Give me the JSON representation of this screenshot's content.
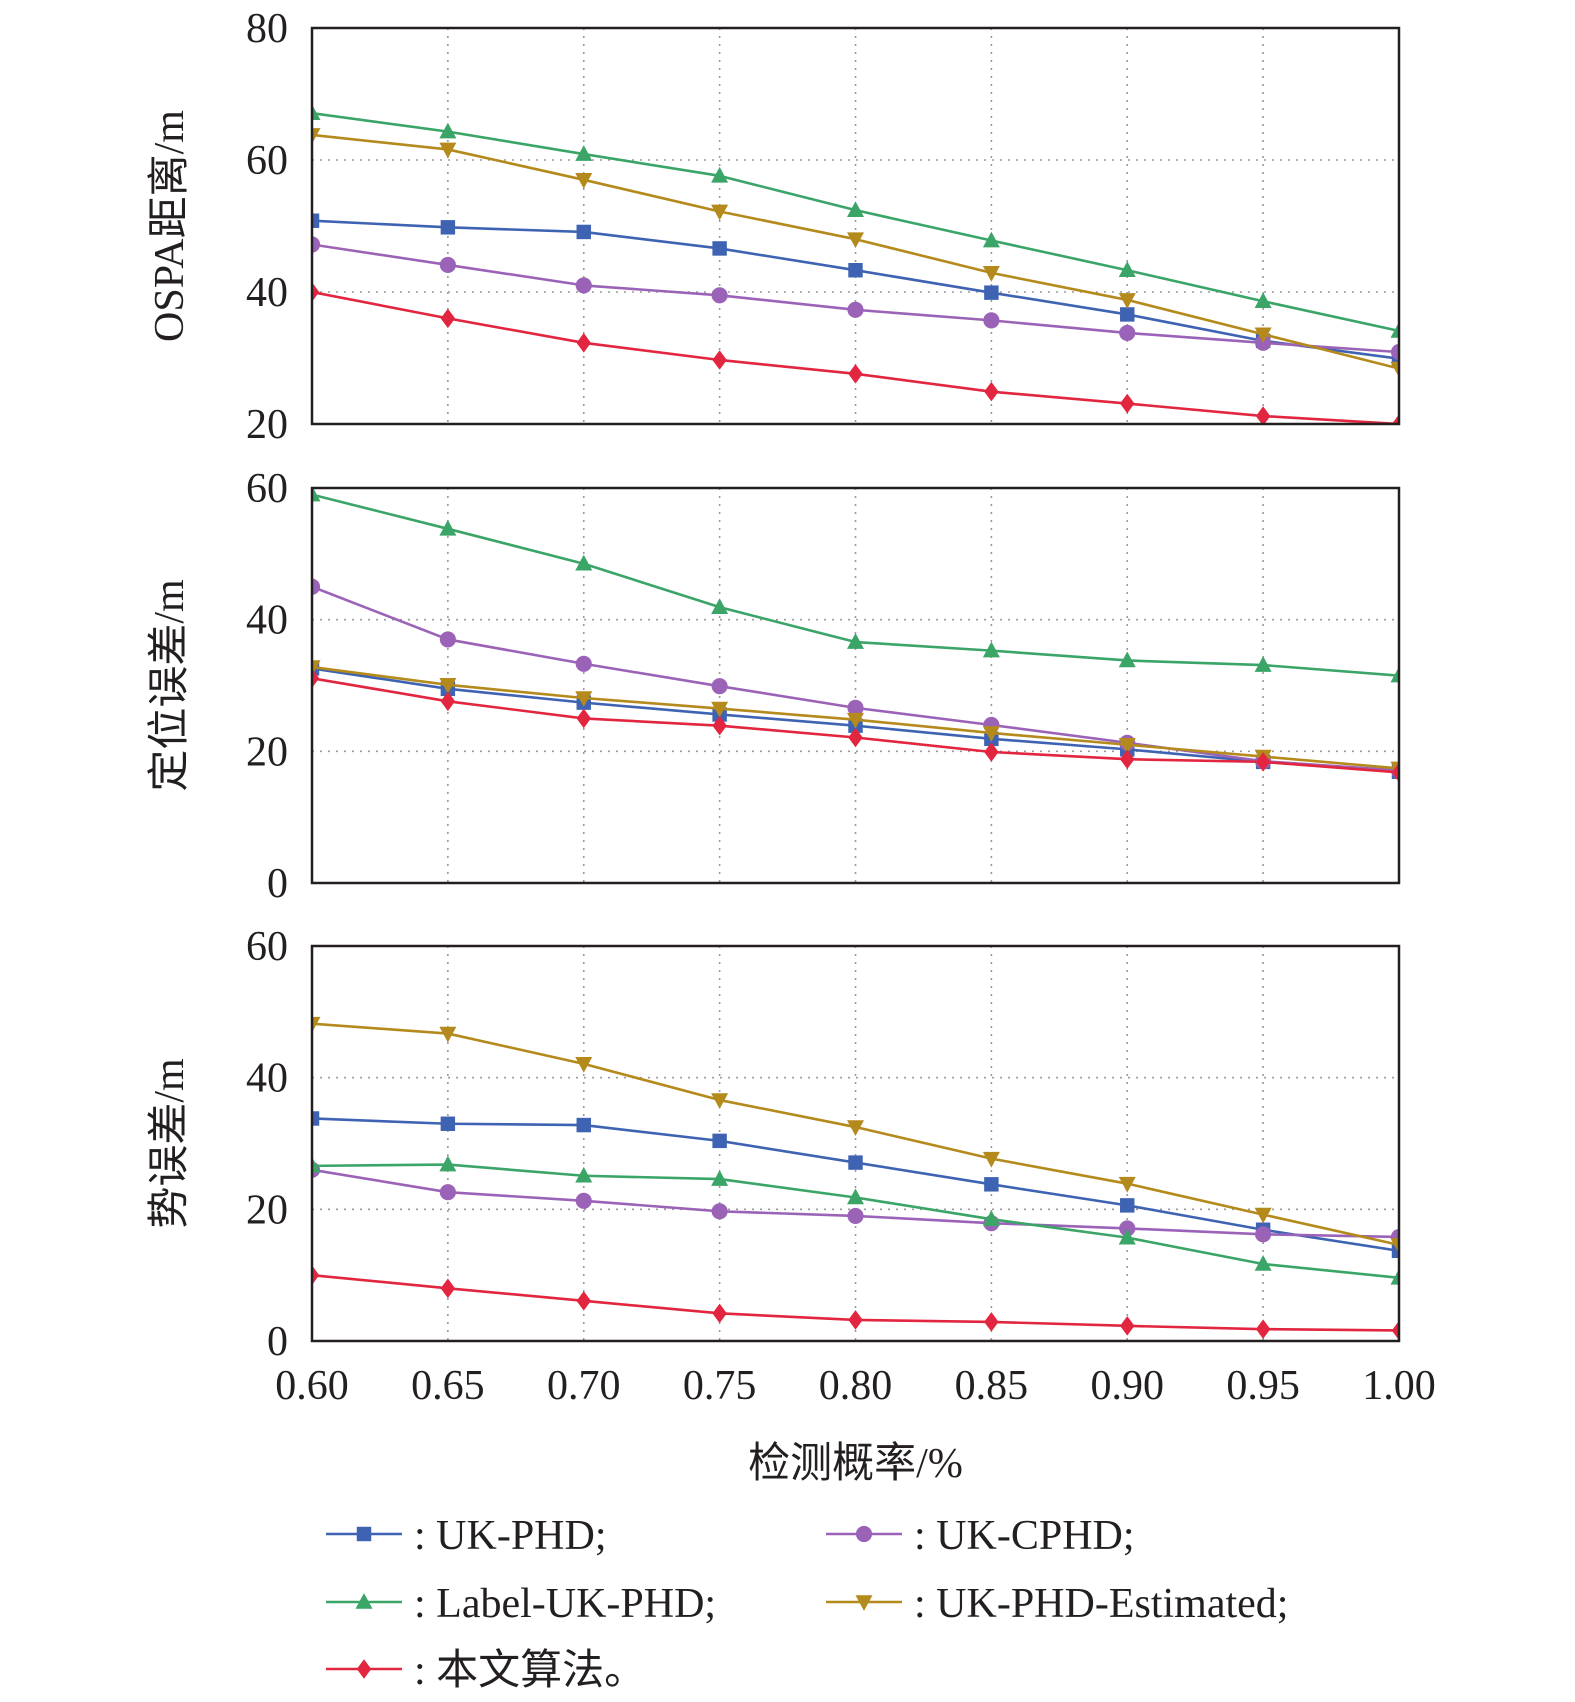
{
  "chart_data": {
    "type": "line",
    "x": [
      0.6,
      0.65,
      0.7,
      0.75,
      0.8,
      0.85,
      0.9,
      0.95,
      1.0
    ],
    "x_tick_labels": [
      "0.60",
      "0.65",
      "0.70",
      "0.75",
      "0.80",
      "0.85",
      "0.90",
      "0.95",
      "1.00"
    ],
    "xlabel": "检测概率/%",
    "xlim": [
      0.6,
      1.0
    ],
    "grid": true,
    "legend_position": "bottom",
    "series_styles": [
      {
        "name": "UK-PHD",
        "legend_label": ": UK-PHD;",
        "color": "#3f63b3",
        "marker": "square"
      },
      {
        "name": "UK-CPHD",
        "legend_label": ": UK-CPHD;",
        "color": "#9b63b8",
        "marker": "circle"
      },
      {
        "name": "Label-UK-PHD",
        "legend_label": ": Label-UK-PHD;",
        "color": "#3aa567",
        "marker": "triangle-up"
      },
      {
        "name": "UK-PHD-Estimated",
        "legend_label": ": UK-PHD-Estimated;",
        "color": "#b58a1c",
        "marker": "triangle-down"
      },
      {
        "name": "本文算法",
        "legend_label": ": 本文算法。",
        "color": "#e3263f",
        "marker": "diamond"
      }
    ],
    "panels": [
      {
        "ylabel": "OSPA距离/m",
        "ylim": [
          20,
          80
        ],
        "yticks": [
          20,
          40,
          60,
          80
        ],
        "ytick_labels": [
          "20",
          "40",
          "60",
          "80"
        ],
        "series": [
          {
            "name": "UK-PHD",
            "values": [
              50.8,
              49.8,
              49.1,
              46.6,
              43.3,
              39.9,
              36.6,
              32.6,
              29.9
            ]
          },
          {
            "name": "UK-CPHD",
            "values": [
              47.2,
              44.1,
              41.0,
              39.5,
              37.3,
              35.7,
              33.8,
              32.3,
              30.9
            ]
          },
          {
            "name": "Label-UK-PHD",
            "values": [
              67.1,
              64.3,
              60.9,
              57.6,
              52.4,
              47.8,
              43.3,
              38.6,
              34.1
            ]
          },
          {
            "name": "UK-PHD-Estimated",
            "values": [
              63.8,
              61.6,
              57.0,
              52.2,
              48.0,
              42.9,
              38.8,
              33.6,
              28.4
            ]
          },
          {
            "name": "本文算法",
            "values": [
              40.0,
              36.0,
              32.3,
              29.7,
              27.6,
              24.9,
              23.1,
              21.2,
              20.0
            ]
          }
        ]
      },
      {
        "ylabel": "定位误差/m",
        "ylim": [
          0,
          60
        ],
        "yticks": [
          0,
          20,
          40,
          60
        ],
        "ytick_labels": [
          "0",
          "20",
          "40",
          "60"
        ],
        "series": [
          {
            "name": "UK-PHD",
            "values": [
              32.6,
              29.5,
              27.4,
              25.6,
              23.9,
              21.9,
              20.3,
              18.4,
              16.9
            ]
          },
          {
            "name": "UK-CPHD",
            "values": [
              45.0,
              37.0,
              33.3,
              29.9,
              26.6,
              24.0,
              21.3,
              18.5,
              17.1
            ]
          },
          {
            "name": "Label-UK-PHD",
            "values": [
              59.0,
              53.8,
              48.5,
              41.9,
              36.6,
              35.3,
              33.8,
              33.1,
              31.5
            ]
          },
          {
            "name": "UK-PHD-Estimated",
            "values": [
              32.8,
              30.1,
              28.1,
              26.5,
              24.8,
              22.8,
              21.0,
              19.2,
              17.4
            ]
          },
          {
            "name": "本文算法",
            "values": [
              31.1,
              27.6,
              25.0,
              23.9,
              22.1,
              19.9,
              18.8,
              18.4,
              16.8
            ]
          }
        ]
      },
      {
        "ylabel": "势误差/m",
        "ylim": [
          0,
          60
        ],
        "yticks": [
          0,
          20,
          40,
          60
        ],
        "ytick_labels": [
          "0",
          "20",
          "40",
          "60"
        ],
        "series": [
          {
            "name": "UK-PHD",
            "values": [
              33.8,
              33.0,
              32.8,
              30.4,
              27.1,
              23.8,
              20.6,
              16.9,
              13.7
            ]
          },
          {
            "name": "UK-CPHD",
            "values": [
              26.0,
              22.6,
              21.3,
              19.7,
              19.0,
              17.9,
              17.1,
              16.2,
              15.8
            ]
          },
          {
            "name": "Label-UK-PHD",
            "values": [
              26.6,
              26.8,
              25.1,
              24.6,
              21.8,
              18.5,
              15.7,
              11.7,
              9.6
            ]
          },
          {
            "name": "UK-PHD-Estimated",
            "values": [
              48.2,
              46.7,
              42.1,
              36.6,
              32.5,
              27.7,
              23.9,
              19.2,
              14.6
            ]
          },
          {
            "name": "本文算法",
            "values": [
              10.0,
              8.0,
              6.1,
              4.2,
              3.2,
              2.9,
              2.3,
              1.8,
              1.6
            ]
          }
        ]
      }
    ]
  }
}
